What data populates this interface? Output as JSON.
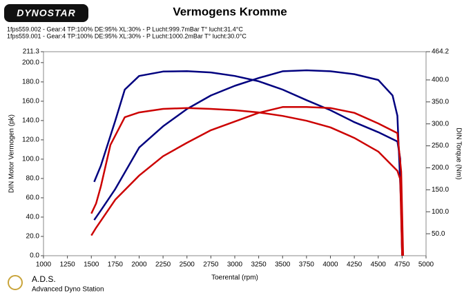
{
  "logo": "DYNOSTAR",
  "runs": [
    {
      "label": "1fps559.002 - Gear:4 TP:100% DE:95% XL:30%   - P Lucht:999.7mBar T° lucht:31.4°C",
      "color": "#000000"
    },
    {
      "label": "1fps559.001 - Gear:4 TP:100% DE:95% XL:30%   - P Lucht:1000.2mBar T° lucht:30.0°C",
      "color": "#cc0000"
    }
  ],
  "footer": {
    "brand": "A.D.S.",
    "subtitle": "Advanced Dyno Station"
  },
  "chart_data": {
    "type": "line",
    "title": "Vermogens Kromme",
    "x_label": "Toerental (rpm)",
    "y_label": "DIN Motor Vermogen (pk)",
    "y2_label": "DIN Torque (Nm)",
    "xlim": [
      1000,
      5000
    ],
    "xticks": [
      1000,
      1250,
      1500,
      1750,
      2000,
      2250,
      2500,
      2750,
      3000,
      3250,
      3500,
      3750,
      4000,
      4250,
      4500,
      4750,
      5000
    ],
    "ylim": [
      0,
      211.3
    ],
    "yticks": [
      {
        "value": 0,
        "label": "0.0"
      },
      {
        "value": 20,
        "label": "20.0"
      },
      {
        "value": 40,
        "label": "40.0"
      },
      {
        "value": 60,
        "label": "60.0"
      },
      {
        "value": 80,
        "label": "80.0"
      },
      {
        "value": 100,
        "label": "100.0"
      },
      {
        "value": 120,
        "label": "120.0"
      },
      {
        "value": 140,
        "label": "140.0"
      },
      {
        "value": 160,
        "label": "160.0"
      },
      {
        "value": 180,
        "label": "180.0"
      },
      {
        "value": 200,
        "label": "200.0"
      },
      211.3
    ],
    "y2lim": [
      0,
      464.2
    ],
    "y2ticks": [
      {
        "value": 50,
        "label": "50.0"
      },
      {
        "value": 100,
        "label": "100.0"
      },
      {
        "value": 150,
        "label": "150.0"
      },
      {
        "value": 200,
        "label": "200.0"
      },
      {
        "value": 250,
        "label": "250.0"
      },
      {
        "value": 300,
        "label": "300.0"
      },
      {
        "value": 350,
        "label": "350.0"
      },
      {
        "value": 400,
        "label": "400.0"
      },
      464.2
    ],
    "series": [
      {
        "color": "#00007f",
        "axis": "y2",
        "x": [
          1530,
          1600,
          1750,
          1850,
          2000,
          2250,
          2500,
          2750,
          3000,
          3250,
          3500,
          3750,
          4000,
          4250,
          4500,
          4700,
          4730,
          4750
        ],
        "values": [
          168,
          205,
          307,
          378,
          409,
          419,
          420,
          417,
          409,
          397,
          378,
          354,
          331,
          304,
          281,
          260,
          221,
          0
        ]
      },
      {
        "color": "#00007f",
        "x": [
          1530,
          1600,
          1750,
          2000,
          2250,
          2500,
          2750,
          3000,
          3250,
          3500,
          3750,
          4000,
          4250,
          4500,
          4650,
          4700,
          4740,
          4750
        ],
        "values": [
          37,
          47,
          69,
          112,
          134,
          152,
          166,
          176,
          184,
          191,
          192,
          191,
          188,
          182,
          166,
          145,
          51,
          0
        ]
      },
      {
        "color": "#cc0000",
        "axis": "y2",
        "x": [
          1500,
          1550,
          1600,
          1700,
          1850,
          2000,
          2250,
          2500,
          2750,
          3000,
          3250,
          3500,
          3750,
          4000,
          4250,
          4500,
          4700,
          4730,
          4750
        ],
        "values": [
          96,
          119,
          158,
          252,
          315,
          326,
          334,
          336,
          334,
          331,
          326,
          318,
          307,
          292,
          268,
          237,
          193,
          174,
          0
        ]
      },
      {
        "color": "#cc0000",
        "x": [
          1500,
          1550,
          1750,
          2000,
          2250,
          2500,
          2750,
          3000,
          3250,
          3500,
          3750,
          4000,
          4250,
          4500,
          4700,
          4740,
          4760
        ],
        "values": [
          21,
          29,
          58,
          83,
          103,
          117,
          130,
          139,
          148,
          154,
          154,
          153,
          148,
          137,
          127,
          87,
          0
        ]
      }
    ]
  }
}
